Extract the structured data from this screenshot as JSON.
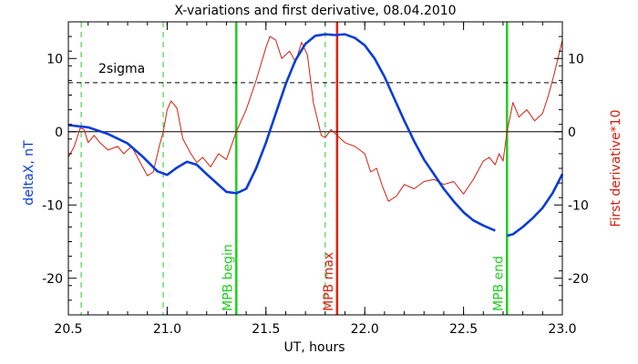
{
  "chart_data": {
    "type": "line",
    "title": "X-variations and first derivative, 08.04.2010",
    "xlabel": "UT, hours",
    "ylabel_left": "deltaX, nT",
    "ylabel_right": "First derivative*10",
    "xlim": [
      20.5,
      23.0
    ],
    "ylim": [
      -25,
      15
    ],
    "x_ticks": [
      "20.5",
      "21.0",
      "21.5",
      "22.0",
      "22.5",
      "23.0"
    ],
    "y_ticks": [
      "-20",
      "-10",
      "0",
      "10"
    ],
    "y_ticks_right": [
      "-20",
      "-10",
      "0",
      "10"
    ],
    "grid": false,
    "colors": {
      "deltaX": "#0a3cd8",
      "derivative": "#d42010",
      "mpb": "#22cc22",
      "max": "#e02010",
      "axis": "#000000"
    },
    "zero_line": 0,
    "sigma_level": 6.7,
    "sigma_label": "2sigma",
    "vertical_lines": [
      {
        "x": 20.565,
        "style": "dashed",
        "color": "#22cc22",
        "label": ""
      },
      {
        "x": 20.98,
        "style": "dashed",
        "color": "#22cc22",
        "label": ""
      },
      {
        "x": 21.35,
        "style": "solid",
        "color": "#22cc22",
        "label": "MPB begin"
      },
      {
        "x": 21.8,
        "style": "dashed",
        "color": "#22cc22",
        "label": ""
      },
      {
        "x": 21.86,
        "style": "solid",
        "color": "#e02010",
        "label": "MPB max"
      },
      {
        "x": 22.72,
        "style": "solid",
        "color": "#22cc22",
        "label": "MPB end"
      }
    ],
    "series": [
      {
        "color": "#0a3cd8",
        "segments": [
          [
            [
              20.5,
              0.9
            ],
            [
              20.6,
              0.6
            ],
            [
              20.7,
              -0.3
            ],
            [
              20.8,
              -1.6
            ],
            [
              20.88,
              -3.5
            ],
            [
              20.95,
              -5.4
            ],
            [
              21.0,
              -5.9
            ],
            [
              21.05,
              -4.9
            ],
            [
              21.1,
              -4.1
            ],
            [
              21.15,
              -4.5
            ],
            [
              21.2,
              -5.8
            ],
            [
              21.25,
              -7.0
            ],
            [
              21.3,
              -8.2
            ],
            [
              21.35,
              -8.4
            ],
            [
              21.4,
              -7.8
            ],
            [
              21.45,
              -5.0
            ],
            [
              21.5,
              -1.5
            ],
            [
              21.55,
              2.5
            ],
            [
              21.6,
              6.5
            ],
            [
              21.65,
              9.8
            ],
            [
              21.7,
              12.0
            ],
            [
              21.75,
              13.1
            ],
            [
              21.8,
              13.3
            ],
            [
              21.85,
              13.2
            ],
            [
              21.9,
              13.3
            ],
            [
              21.95,
              12.8
            ],
            [
              22.0,
              11.8
            ],
            [
              22.05,
              10.0
            ],
            [
              22.1,
              7.5
            ],
            [
              22.15,
              4.5
            ],
            [
              22.2,
              1.5
            ],
            [
              22.25,
              -1.3
            ],
            [
              22.3,
              -3.8
            ],
            [
              22.35,
              -5.8
            ],
            [
              22.4,
              -7.8
            ],
            [
              22.45,
              -9.5
            ],
            [
              22.5,
              -11.0
            ],
            [
              22.55,
              -12.1
            ],
            [
              22.6,
              -12.8
            ],
            [
              22.66,
              -13.5
            ]
          ],
          [
            [
              22.72,
              -14.2
            ],
            [
              22.75,
              -14.0
            ],
            [
              22.8,
              -13.0
            ],
            [
              22.85,
              -11.8
            ],
            [
              22.9,
              -10.4
            ],
            [
              22.95,
              -8.4
            ],
            [
              23.0,
              -5.8
            ]
          ]
        ]
      },
      {
        "color": "#d42010",
        "segments": [
          [
            [
              20.5,
              -3.5
            ],
            [
              20.53,
              -2.0
            ],
            [
              20.56,
              0.5
            ],
            [
              20.58,
              0.3
            ],
            [
              20.6,
              -1.5
            ],
            [
              20.63,
              -0.5
            ],
            [
              20.66,
              -1.5
            ],
            [
              20.7,
              -2.5
            ],
            [
              20.75,
              -2.0
            ],
            [
              20.78,
              -3.0
            ],
            [
              20.82,
              -2.0
            ],
            [
              20.86,
              -4.0
            ],
            [
              20.9,
              -6.0
            ],
            [
              20.93,
              -5.5
            ],
            [
              20.96,
              -2.0
            ],
            [
              20.98,
              0.0
            ],
            [
              21.0,
              3.0
            ],
            [
              21.02,
              4.2
            ],
            [
              21.05,
              3.2
            ],
            [
              21.08,
              -1.0
            ],
            [
              21.12,
              -3.0
            ],
            [
              21.15,
              -4.2
            ],
            [
              21.18,
              -3.5
            ],
            [
              21.22,
              -4.8
            ],
            [
              21.26,
              -3.0
            ],
            [
              21.3,
              -3.8
            ],
            [
              21.35,
              0.0
            ],
            [
              21.4,
              3.0
            ],
            [
              21.45,
              7.0
            ],
            [
              21.5,
              11.5
            ],
            [
              21.52,
              13.0
            ],
            [
              21.55,
              12.5
            ],
            [
              21.58,
              10.0
            ],
            [
              21.62,
              11.0
            ],
            [
              21.65,
              9.5
            ],
            [
              21.68,
              12.2
            ],
            [
              21.71,
              10.5
            ],
            [
              21.74,
              4.0
            ],
            [
              21.78,
              -0.5
            ],
            [
              21.8,
              -0.8
            ],
            [
              21.83,
              0.3
            ],
            [
              21.86,
              -0.5
            ],
            [
              21.9,
              -1.5
            ],
            [
              21.95,
              -2.0
            ],
            [
              22.0,
              -3.0
            ],
            [
              22.03,
              -5.5
            ],
            [
              22.06,
              -5.0
            ],
            [
              22.09,
              -7.5
            ],
            [
              22.12,
              -9.5
            ],
            [
              22.16,
              -8.8
            ],
            [
              22.2,
              -7.2
            ],
            [
              22.25,
              -7.8
            ],
            [
              22.3,
              -6.8
            ],
            [
              22.35,
              -6.5
            ],
            [
              22.4,
              -7.2
            ],
            [
              22.45,
              -6.8
            ],
            [
              22.5,
              -8.5
            ],
            [
              22.55,
              -6.5
            ],
            [
              22.6,
              -4.0
            ],
            [
              22.63,
              -3.5
            ],
            [
              22.66,
              -4.5
            ],
            [
              22.68,
              -3.0
            ],
            [
              22.7,
              -4.0
            ],
            [
              22.72,
              0.0
            ],
            [
              22.75,
              4.0
            ],
            [
              22.78,
              2.0
            ],
            [
              22.82,
              3.0
            ],
            [
              22.86,
              1.5
            ],
            [
              22.9,
              2.5
            ],
            [
              22.93,
              5.0
            ],
            [
              22.96,
              8.0
            ],
            [
              23.0,
              12.5
            ]
          ]
        ]
      }
    ]
  }
}
